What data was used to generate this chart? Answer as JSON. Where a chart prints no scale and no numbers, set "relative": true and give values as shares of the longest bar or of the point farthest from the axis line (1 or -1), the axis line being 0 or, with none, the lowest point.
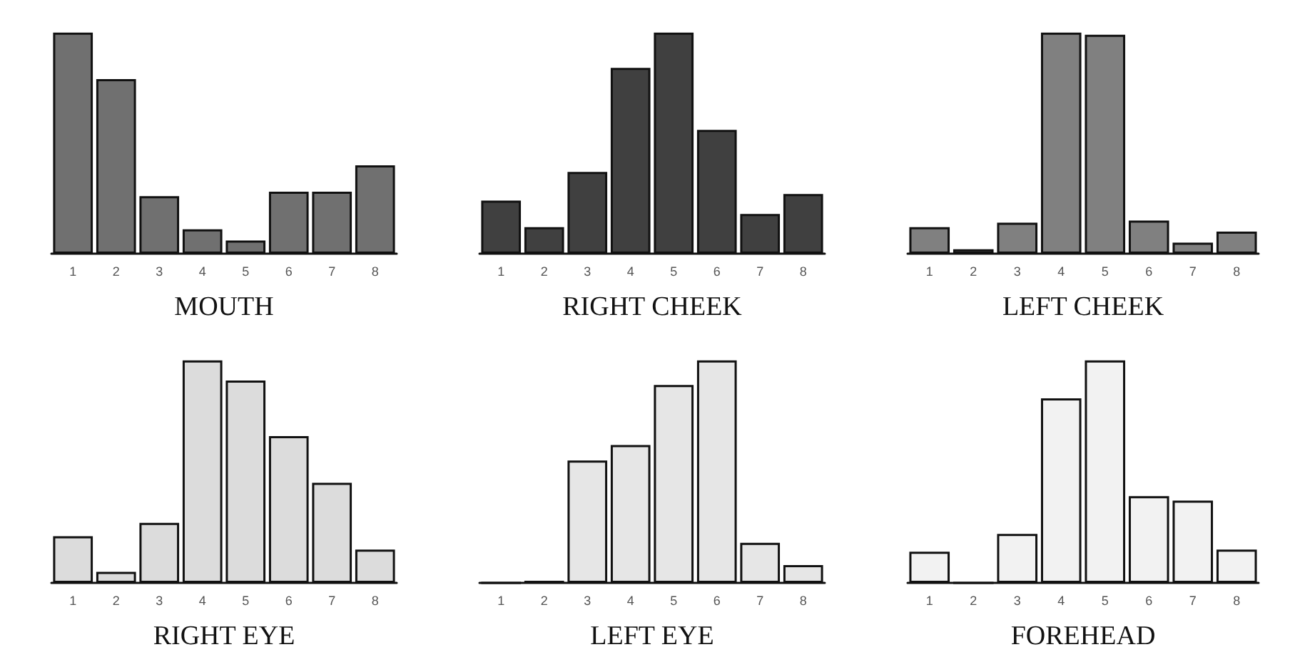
{
  "chart_data": [
    {
      "type": "bar",
      "xlabel": "MOUTH",
      "categories": [
        "1",
        "2",
        "3",
        "4",
        "5",
        "6",
        "7",
        "8"
      ],
      "values": [
        1,
        0.79,
        0.26,
        0.11,
        0.06,
        0.28,
        0.28,
        0.4
      ],
      "color": "#707070",
      "relative": true
    },
    {
      "type": "bar",
      "xlabel": "RIGHT CHEEK",
      "categories": [
        "1",
        "2",
        "3",
        "4",
        "5",
        "6",
        "7",
        "8"
      ],
      "values": [
        0.24,
        0.12,
        0.37,
        0.84,
        1,
        0.56,
        0.18,
        0.27
      ],
      "color": "#404040",
      "relative": true
    },
    {
      "type": "bar",
      "xlabel": "LEFT CHEEK",
      "categories": [
        "1",
        "2",
        "3",
        "4",
        "5",
        "6",
        "7",
        "8"
      ],
      "values": [
        0.12,
        0.02,
        0.14,
        1,
        0.99,
        0.15,
        0.05,
        0.1
      ],
      "color": "#808080",
      "relative": true
    },
    {
      "type": "bar",
      "xlabel": "RIGHT EYE",
      "categories": [
        "1",
        "2",
        "3",
        "4",
        "5",
        "6",
        "7",
        "8"
      ],
      "values": [
        0.21,
        0.05,
        0.27,
        1,
        0.91,
        0.66,
        0.45,
        0.15
      ],
      "color": "#dcdcdc",
      "relative": true
    },
    {
      "type": "bar",
      "xlabel": "LEFT EYE",
      "categories": [
        "1",
        "2",
        "3",
        "4",
        "5",
        "6",
        "7",
        "8"
      ],
      "values": [
        0,
        0.01,
        0.55,
        0.62,
        0.89,
        1,
        0.18,
        0.08
      ],
      "color": "#e6e6e6",
      "relative": true
    },
    {
      "type": "bar",
      "xlabel": "FOREHEAD",
      "categories": [
        "1",
        "2",
        "3",
        "4",
        "5",
        "6",
        "7",
        "8"
      ],
      "values": [
        0.14,
        0,
        0.22,
        0.83,
        1,
        0.39,
        0.37,
        0.15
      ],
      "color": "#f2f2f2",
      "relative": true
    }
  ]
}
